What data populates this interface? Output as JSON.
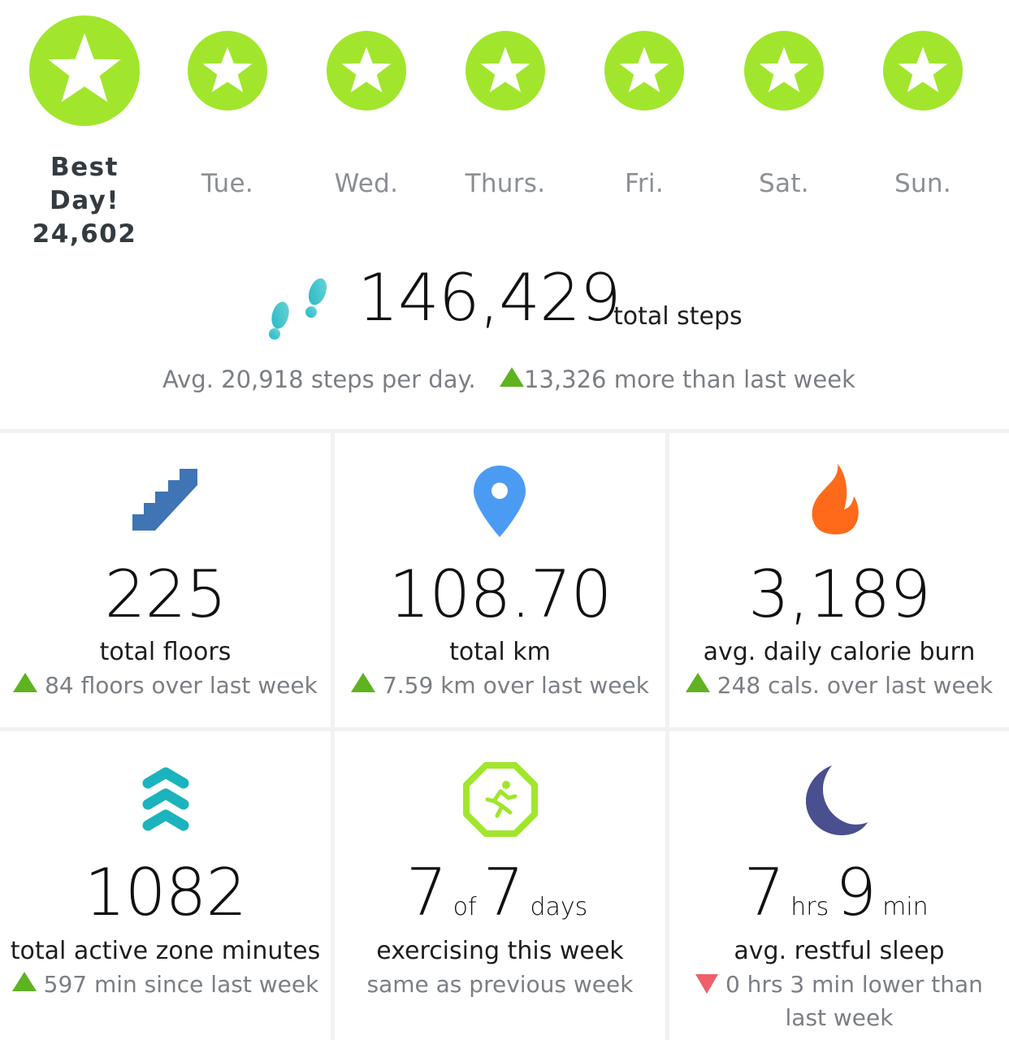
{
  "days": [
    {
      "label": "Best Day!",
      "value": "24,602",
      "best": true
    },
    {
      "label": "Tue."
    },
    {
      "label": "Wed."
    },
    {
      "label": "Thurs."
    },
    {
      "label": "Fri."
    },
    {
      "label": "Sat."
    },
    {
      "label": "Sun."
    }
  ],
  "steps": {
    "total": "146,429",
    "unit": "total steps",
    "average": "Avg. 20,918 steps per day.",
    "comparison": "13,326 more than last week"
  },
  "stats": [
    {
      "icon": "stairs-icon",
      "value": "225",
      "label": "total floors",
      "delta": "84 floors over last week",
      "trend": "up"
    },
    {
      "icon": "location-pin-icon",
      "value": "108.70",
      "label": "total km",
      "delta": "7.59 km over last week",
      "trend": "up"
    },
    {
      "icon": "flame-icon",
      "value": "3,189",
      "label": "avg. daily calorie burn",
      "delta": "248 cals. over last week",
      "trend": "up"
    },
    {
      "icon": "active-zone-chevrons-icon",
      "value": "1082",
      "label": "total active zone minutes",
      "delta": "597 min since last week",
      "trend": "up"
    },
    {
      "icon": "exercise-runner-icon",
      "value_a": "7",
      "sep": "of",
      "value_b": "7",
      "unit": "days",
      "label": "exercising this week",
      "delta": "same as previous week",
      "trend": "none"
    },
    {
      "icon": "moon-icon",
      "value_a": "7",
      "unit_a": "hrs",
      "value_b": "9",
      "unit_b": "min",
      "label": "avg. restful sleep",
      "delta": "0 hrs 3 min lower than last week",
      "trend": "down"
    }
  ],
  "colors": {
    "badge_green": "#a1e62c",
    "trend_up": "#5fb321",
    "trend_down": "#f0606a",
    "stairs": "#3f74b5",
    "pin": "#4c9bf2",
    "flame": "#ff6a1a",
    "zone": "#1bb3bd",
    "moon": "#4a4f8f"
  }
}
